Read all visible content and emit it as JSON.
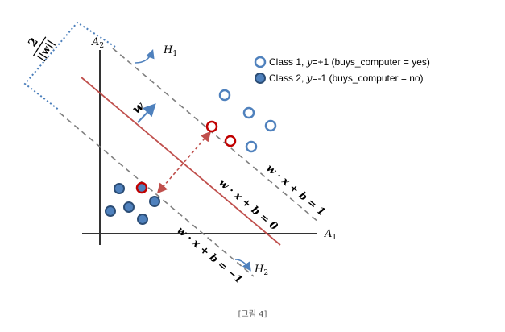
{
  "axes": {
    "y_label": "A",
    "y_label_sub": "2",
    "x_label": "A",
    "x_label_sub": "1"
  },
  "hyperplanes": {
    "h1_label": "H",
    "h1_sub": "1",
    "h2_label": "H",
    "h2_sub": "2",
    "eq_top": "w · x + b = 1",
    "eq_mid": "w · x + b = 0",
    "eq_bot": "w · x + b = −1"
  },
  "normal_vector_label": "w",
  "margin_label": {
    "numerator": "2",
    "denominator": "||w||"
  },
  "legend": {
    "class1": {
      "prefix": "Class 1, ",
      "var": "y",
      "suffix": "=+1 (buys_computer = yes)"
    },
    "class2": {
      "prefix": "Class 2, ",
      "var": "y",
      "suffix": "=-1 (buys_computer = no)"
    }
  },
  "caption": "[그림 4]",
  "colors": {
    "axis": "#333333",
    "hyperplane": "#c0504d",
    "margin_line": "#7f7f7f",
    "class1_stroke": "#4f81bd",
    "class2_fill": "#4f81bd",
    "class2_stroke": "#2c4d75",
    "support_vector": "#c00000",
    "arrow": "#4f81bd",
    "bracket": "#4a7ebb"
  }
}
